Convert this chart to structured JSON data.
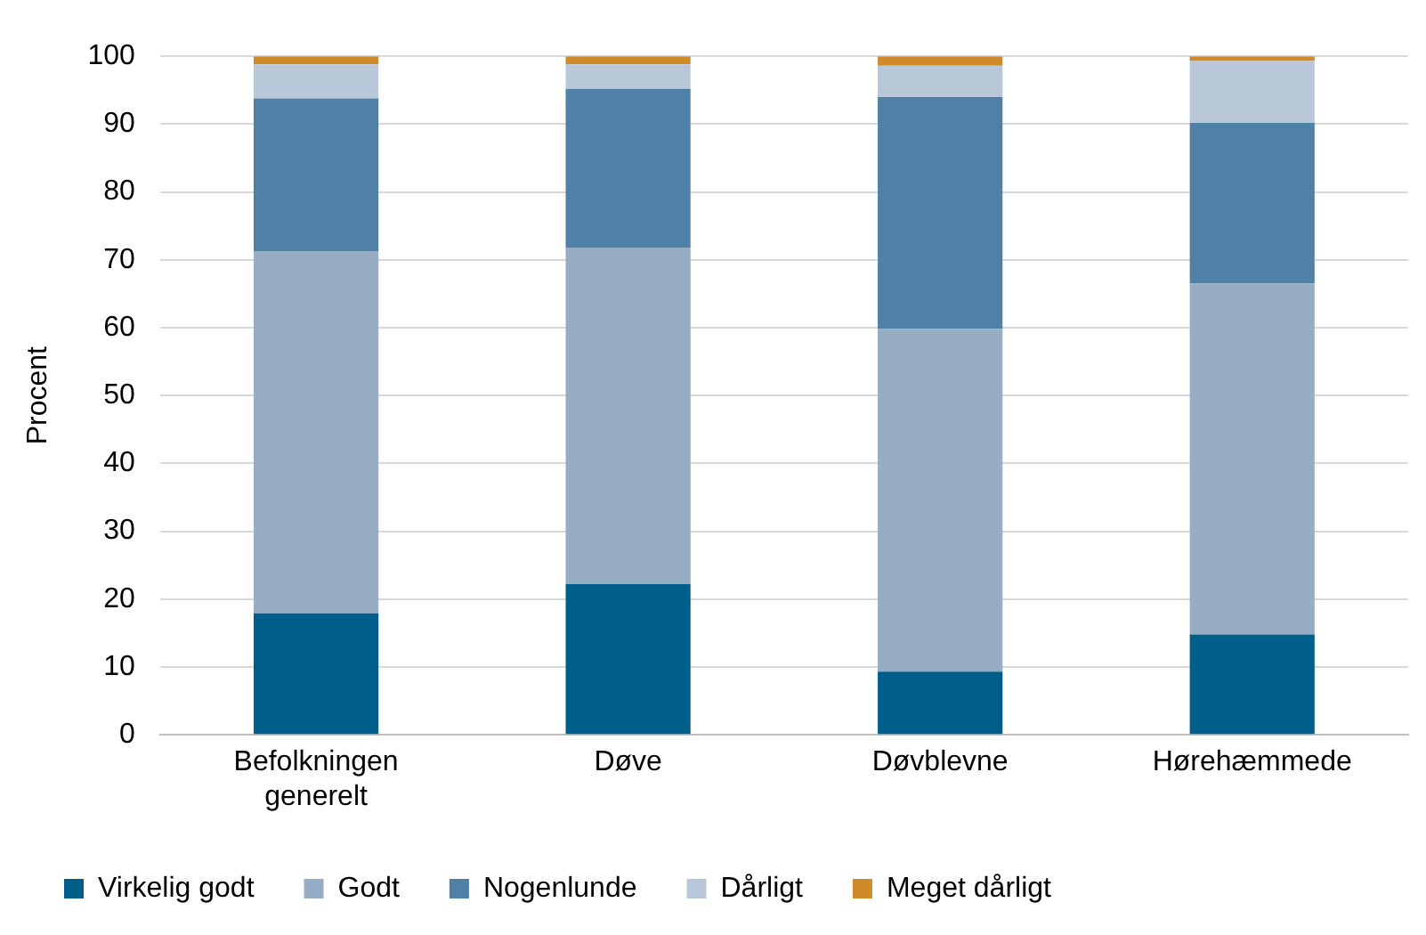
{
  "chart_data": {
    "type": "bar",
    "stacked": true,
    "ylabel": "Procent",
    "categories": [
      "Befolkningen generelt",
      "Døve",
      "Døvblevne",
      "Hørehæmmede"
    ],
    "series": [
      {
        "name": "Virkelig godt",
        "color": "#005f8a",
        "values": [
          17.9,
          22.2,
          9.3,
          14.8
        ]
      },
      {
        "name": "Godt",
        "color": "#96adc4",
        "values": [
          53.4,
          49.6,
          50.5,
          51.7
        ]
      },
      {
        "name": "Nogenlunde",
        "color": "#4f81a6",
        "values": [
          22.5,
          23.4,
          34.2,
          23.7
        ]
      },
      {
        "name": "Dårligt",
        "color": "#b9c8d9",
        "values": [
          5,
          3.6,
          4.6,
          9.1
        ]
      },
      {
        "name": "Meget dårligt",
        "color": "#d08a2a",
        "values": [
          1.2,
          1.2,
          1.4,
          0.7
        ]
      }
    ],
    "ylim": [
      0,
      100
    ],
    "yticks": [
      0,
      10,
      20,
      30,
      40,
      50,
      60,
      70,
      80,
      90,
      100
    ],
    "grid": "y",
    "legend": "bottom"
  }
}
